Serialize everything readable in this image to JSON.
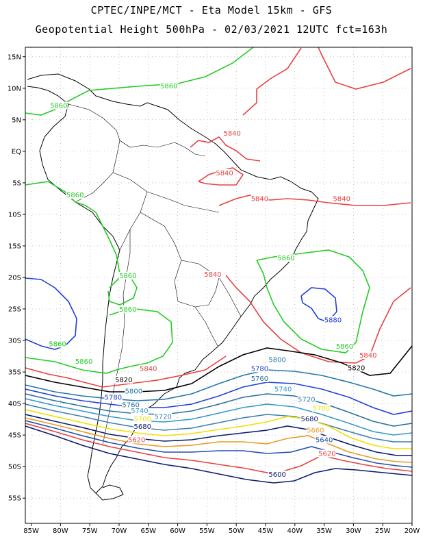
{
  "header": {
    "line1": "CPTEC/INPE/MCT -  Eta Model 15km - GFS",
    "line2": "Geopotential Height 500hPa - 02/03/2021 12UTC fct=163h"
  },
  "axes": {
    "lat_ticks": [
      "15N",
      "10N",
      "5N",
      "EQ",
      "5S",
      "10S",
      "15S",
      "20S",
      "25S",
      "30S",
      "35S",
      "40S",
      "45S",
      "50S",
      "55S"
    ],
    "lat_values": [
      15,
      10,
      5,
      0,
      -5,
      -10,
      -15,
      -20,
      -25,
      -30,
      -35,
      -40,
      -45,
      -50,
      -55
    ],
    "lon_ticks": [
      "85W",
      "80W",
      "75W",
      "70W",
      "65W",
      "60W",
      "55W",
      "50W",
      "45W",
      "40W",
      "35W",
      "30W",
      "25W",
      "20W"
    ],
    "lon_values": [
      -85,
      -80,
      -75,
      -70,
      -65,
      -60,
      -55,
      -50,
      -45,
      -40,
      -35,
      -30,
      -25,
      -20
    ],
    "lon_range": [
      -86,
      -20
    ],
    "lat_range": [
      -59,
      16.5
    ],
    "grid": "dotted"
  },
  "contour_colors": {
    "5860": "#22cc22",
    "5840": "#e84040",
    "5880": "#1f3fd6",
    "5820": "#000000",
    "5800": "#2277aa",
    "5780": "#1f3fd6",
    "5760": "#2a6f9e",
    "5740": "#3399cc",
    "5720": "#3a7fb0",
    "5700": "#f0e000",
    "5680": "#0a1a6e",
    "5660": "#e89a20",
    "5640": "#1f4fb0",
    "5620": "#e84040",
    "5600": "#0a1a6e",
    "coast": "#000000"
  },
  "contour_labels": [
    {
      "text": "5860",
      "lon": -61.5,
      "lat": 10.1
    },
    {
      "text": "5860",
      "lon": -80.3,
      "lat": 7.0
    },
    {
      "text": "5860",
      "lon": -77.5,
      "lat": -7.2
    },
    {
      "text": "5860",
      "lon": -68.5,
      "lat": -20.0
    },
    {
      "text": "5860",
      "lon": -68.5,
      "lat": -25.3
    },
    {
      "text": "5860",
      "lon": -76.0,
      "lat": -33.6
    },
    {
      "text": "5860",
      "lon": -80.5,
      "lat": -30.8
    },
    {
      "text": "5860",
      "lon": -41.5,
      "lat": -17.2
    },
    {
      "text": "5860",
      "lon": -31.5,
      "lat": -31.2
    },
    {
      "text": "5840",
      "lon": -50.7,
      "lat": 2.6
    },
    {
      "text": "5840",
      "lon": -52.0,
      "lat": -3.7
    },
    {
      "text": "5840",
      "lon": -46.0,
      "lat": -7.8
    },
    {
      "text": "5840",
      "lon": -32.0,
      "lat": -7.8
    },
    {
      "text": "5840",
      "lon": -54.0,
      "lat": -19.8
    },
    {
      "text": "5840",
      "lon": -27.5,
      "lat": -32.6
    },
    {
      "text": "5840",
      "lon": -65.0,
      "lat": -34.7
    },
    {
      "text": "5880",
      "lon": -33.5,
      "lat": -27.0
    },
    {
      "text": "5820",
      "lon": -69.2,
      "lat": -36.5
    },
    {
      "text": "5820",
      "lon": -29.5,
      "lat": -34.6
    },
    {
      "text": "5800",
      "lon": -43.0,
      "lat": -33.3
    },
    {
      "text": "5800",
      "lon": -67.5,
      "lat": -38.3
    },
    {
      "text": "5780",
      "lon": -46.0,
      "lat": -34.7
    },
    {
      "text": "5780",
      "lon": -71.0,
      "lat": -39.3
    },
    {
      "text": "5760",
      "lon": -46.0,
      "lat": -36.3
    },
    {
      "text": "5760",
      "lon": -68.0,
      "lat": -40.5
    },
    {
      "text": "5740",
      "lon": -42.0,
      "lat": -38.0
    },
    {
      "text": "5740",
      "lon": -66.5,
      "lat": -41.4
    },
    {
      "text": "5720",
      "lon": -38.0,
      "lat": -39.6
    },
    {
      "text": "5720",
      "lon": -62.5,
      "lat": -42.3
    },
    {
      "text": "5700",
      "lon": -35.5,
      "lat": -41.0
    },
    {
      "text": "5700",
      "lon": -66.0,
      "lat": -42.7
    },
    {
      "text": "5680",
      "lon": -37.5,
      "lat": -42.7
    },
    {
      "text": "5680",
      "lon": -66.0,
      "lat": -43.9
    },
    {
      "text": "5660",
      "lon": -36.5,
      "lat": -44.5
    },
    {
      "text": "5640",
      "lon": -35.0,
      "lat": -46.0
    },
    {
      "text": "5620",
      "lon": -67.0,
      "lat": -46.0
    },
    {
      "text": "5620",
      "lon": -34.5,
      "lat": -48.2
    },
    {
      "text": "5600",
      "lon": -43.0,
      "lat": -51.5
    }
  ]
}
